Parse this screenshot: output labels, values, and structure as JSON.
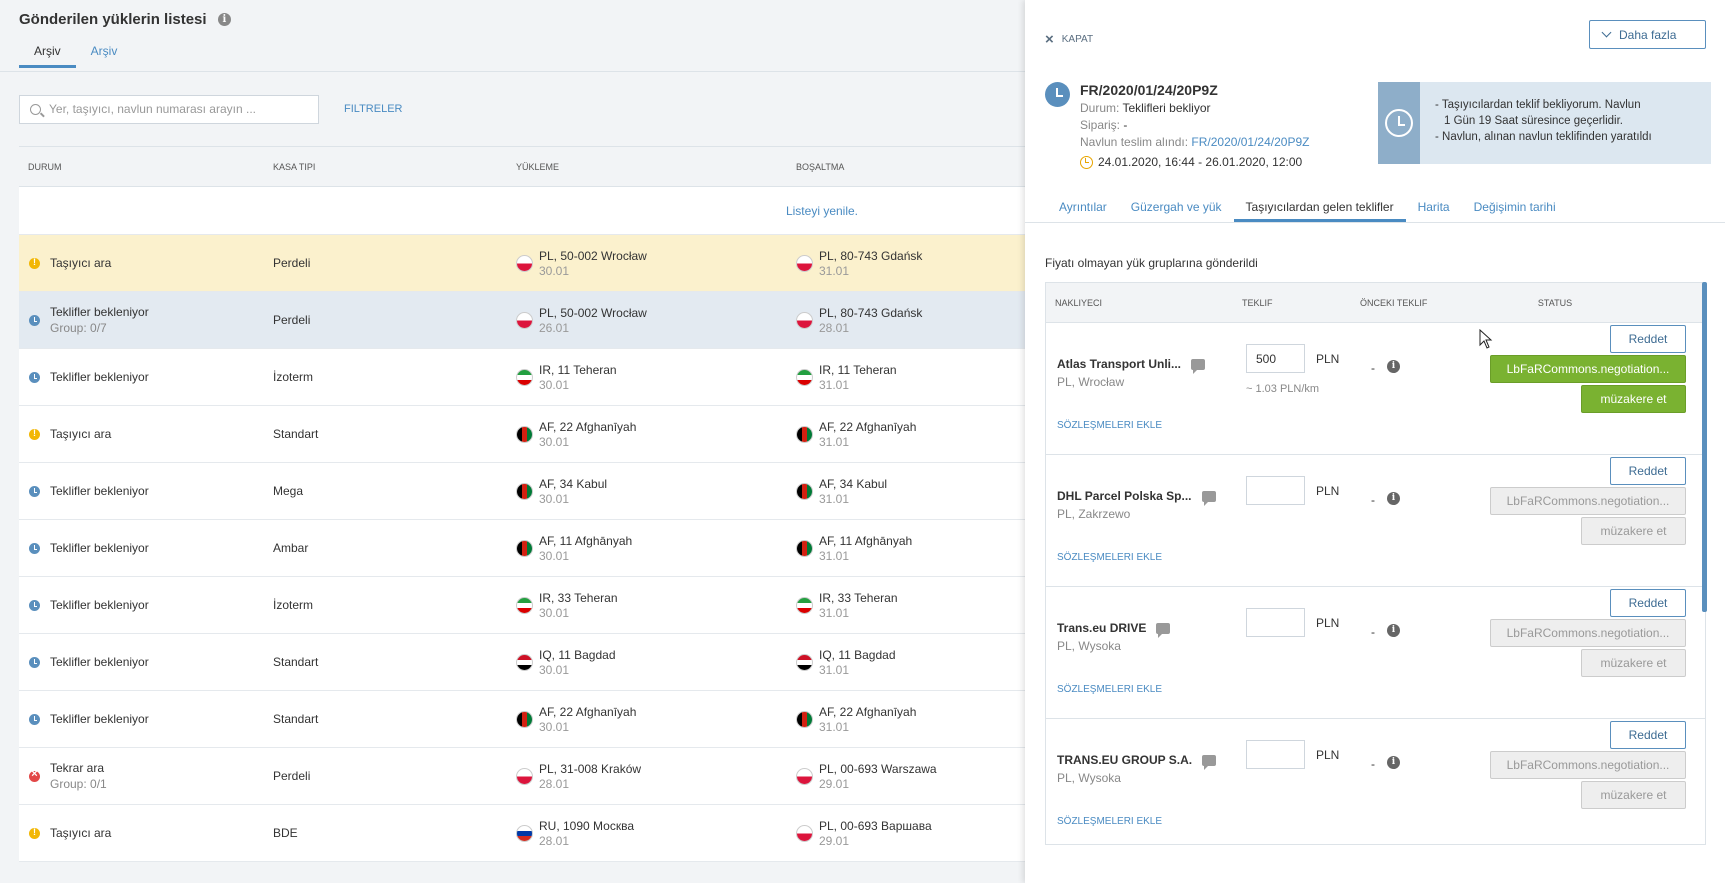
{
  "list": {
    "title": "Gönderilen yüklerin listesi",
    "tabs": [
      "Arşiv",
      "Arşiv"
    ],
    "search_placeholder": "Yer, taşıyıcı, navlun numarası arayın ...",
    "filters_label": "FILTRELER",
    "columns": [
      "DURUM",
      "KASA TIPI",
      "YÜKLEME",
      "BOŞALTMA"
    ],
    "refresh_label": "Listeyi yenile.",
    "rows": [
      {
        "status": "Taşıyıcı ara",
        "sub": "",
        "icon": "warn",
        "body": "Perdeli",
        "load_flag": "PL",
        "load_loc": "PL, 50-002 Wrocław",
        "load_date": "30.01",
        "unload_flag": "PL",
        "unload_loc": "PL, 80-743 Gdańsk",
        "unload_date": "31.01",
        "highlight": "yellow"
      },
      {
        "status": "Teklifler bekleniyor",
        "sub": "Group: 0/7",
        "icon": "clock",
        "body": "Perdeli",
        "load_flag": "PL",
        "load_loc": "PL, 50-002 Wrocław",
        "load_date": "26.01",
        "unload_flag": "PL",
        "unload_loc": "PL, 80-743 Gdańsk",
        "unload_date": "28.01",
        "highlight": "blue"
      },
      {
        "status": "Teklifler bekleniyor",
        "sub": "",
        "icon": "clock",
        "body": "İzoterm",
        "load_flag": "IR",
        "load_loc": "IR, 11 Teheran",
        "load_date": "30.01",
        "unload_flag": "IR",
        "unload_loc": "IR, 11 Teheran",
        "unload_date": "31.01",
        "highlight": ""
      },
      {
        "status": "Taşıyıcı ara",
        "sub": "",
        "icon": "warn",
        "body": "Standart",
        "load_flag": "AF",
        "load_loc": "AF, 22 Afghanīyah",
        "load_date": "30.01",
        "unload_flag": "AF",
        "unload_loc": "AF, 22 Afghanīyah",
        "unload_date": "31.01",
        "highlight": ""
      },
      {
        "status": "Teklifler bekleniyor",
        "sub": "",
        "icon": "clock",
        "body": "Mega",
        "load_flag": "AF",
        "load_loc": "AF, 34 Kabul",
        "load_date": "30.01",
        "unload_flag": "AF",
        "unload_loc": "AF, 34 Kabul",
        "unload_date": "31.01",
        "highlight": ""
      },
      {
        "status": "Teklifler bekleniyor",
        "sub": "",
        "icon": "clock",
        "body": "Ambar",
        "load_flag": "AF",
        "load_loc": "AF, 11 Afghānyah",
        "load_date": "30.01",
        "unload_flag": "AF",
        "unload_loc": "AF, 11 Afghānyah",
        "unload_date": "31.01",
        "highlight": ""
      },
      {
        "status": "Teklifler bekleniyor",
        "sub": "",
        "icon": "clock",
        "body": "İzoterm",
        "load_flag": "IR",
        "load_loc": "IR, 33 Teheran",
        "load_date": "30.01",
        "unload_flag": "IR",
        "unload_loc": "IR, 33 Teheran",
        "unload_date": "31.01",
        "highlight": ""
      },
      {
        "status": "Teklifler bekleniyor",
        "sub": "",
        "icon": "clock",
        "body": "Standart",
        "load_flag": "IQ",
        "load_loc": "IQ, 11 Bagdad",
        "load_date": "30.01",
        "unload_flag": "IQ",
        "unload_loc": "IQ, 11 Bagdad",
        "unload_date": "31.01",
        "highlight": ""
      },
      {
        "status": "Teklifler bekleniyor",
        "sub": "",
        "icon": "clock",
        "body": "Standart",
        "load_flag": "AF",
        "load_loc": "AF, 22 Afghanīyah",
        "load_date": "30.01",
        "unload_flag": "AF",
        "unload_loc": "AF, 22 Afghanīyah",
        "unload_date": "31.01",
        "highlight": ""
      },
      {
        "status": "Tekrar ara",
        "sub": "Group: 0/1",
        "icon": "error",
        "body": "Perdeli",
        "load_flag": "PL",
        "load_loc": "PL, 31-008 Kraków",
        "load_date": "28.01",
        "unload_flag": "PL",
        "unload_loc": "PL, 00-693 Warszawa",
        "unload_date": "29.01",
        "highlight": ""
      },
      {
        "status": "Taşıyıcı ara",
        "sub": "",
        "icon": "warn",
        "body": "BDE",
        "load_flag": "RU",
        "load_loc": "RU, 1090 Москва",
        "load_date": "28.01",
        "unload_flag": "PL",
        "unload_loc": "PL, 00-693 Варшава",
        "unload_date": "29.01",
        "highlight": ""
      }
    ]
  },
  "panel": {
    "close_label": "KAPAT",
    "more_label": "Daha fazla",
    "shipment_id": "FR/2020/01/24/20P9Z",
    "status_label": "Durum:",
    "status_value": "Teklifleri bekliyor",
    "order_label": "Sipariş:",
    "order_value": "-",
    "received_label": "Navlun teslim alındı:",
    "received_value": "FR/2020/01/24/20P9Z",
    "time_range": "24.01.2020, 16:44 - 26.01.2020, 12:00",
    "notice_lines": [
      "- Taşıyıcılardan teklif bekliyorum. Navlun",
      "1 Gün 19 Saat süresince geçerlidir.",
      "- Navlun, alınan navlun teklifinden yaratıldı"
    ],
    "tabs": [
      "Ayrıntılar",
      "Güzergah ve yük",
      "Taşıyıcılardan gelen teklifler",
      "Harita",
      "Değişimin tarihi"
    ],
    "active_tab": 2,
    "sent_text": "Fiyatı olmayan yük gruplarına gönderildi",
    "offer_columns": [
      "NAKLIYECI",
      "TEKLIF",
      "ÖNCEKI TEKLIF",
      "STATUS"
    ],
    "contracts_label": "SÖZLEŞMELERI EKLE",
    "reject_label": "Reddet",
    "accept_label": "LbFaRCommons.negotiation...",
    "negotiate_label": "müzakere et",
    "currency": "PLN",
    "offers": [
      {
        "carrier": "Atlas Transport Unli...",
        "location": "PL, Wrocław",
        "price": "500",
        "per_km": "~ 1.03 PLN/km",
        "previous": "-",
        "active": true
      },
      {
        "carrier": "DHL Parcel Polska Sp...",
        "location": "PL, Zakrzewo",
        "price": "",
        "per_km": "",
        "previous": "-",
        "active": false
      },
      {
        "carrier": "Trans.eu DRIVE",
        "location": "PL, Wysoka",
        "price": "",
        "per_km": "",
        "previous": "-",
        "active": false
      },
      {
        "carrier": "TRANS.EU GROUP S.A.",
        "location": "PL, Wysoka",
        "price": "",
        "per_km": "",
        "previous": "-",
        "active": false
      }
    ]
  }
}
